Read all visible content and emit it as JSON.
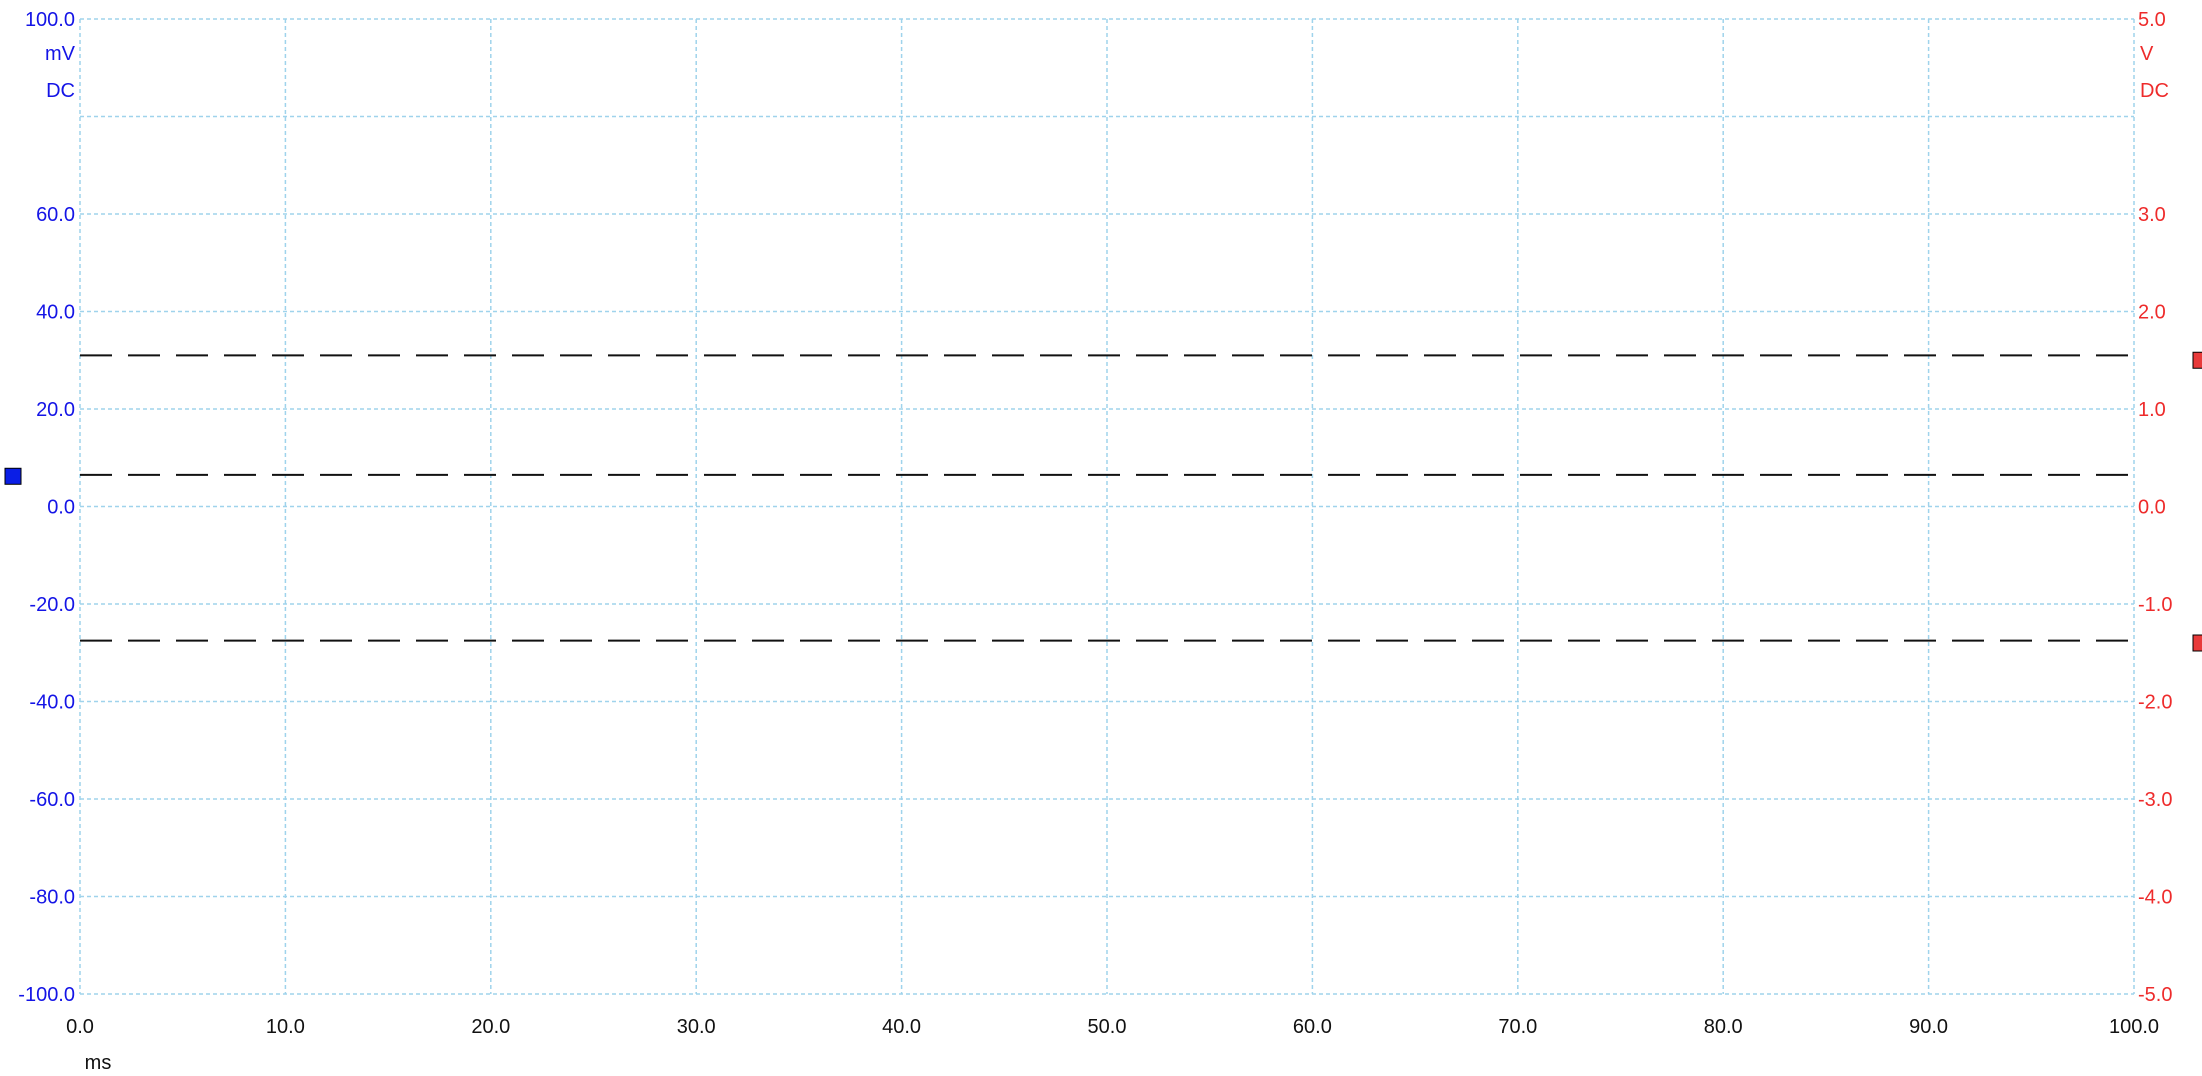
{
  "colors": {
    "left_axis": "#1414e6",
    "right_axis": "#ee2b2b",
    "x_axis": "#111111",
    "grid": "#9fd3ec",
    "threshold_line": "#111111",
    "marker_blue": "#0a1ee6",
    "marker_red": "#e83a3a"
  },
  "left_axis": {
    "unit": "mV",
    "coupling": "DC",
    "ticks": [
      "100.0",
      "60.0",
      "40.0",
      "20.0",
      "0.0",
      "-20.0",
      "-40.0",
      "-60.0",
      "-80.0",
      "-100.0"
    ]
  },
  "right_axis": {
    "unit": "V",
    "coupling": "DC",
    "ticks": [
      "5.0",
      "3.0",
      "2.0",
      "1.0",
      "0.0",
      "-1.0",
      "-2.0",
      "-3.0",
      "-4.0",
      "-5.0"
    ]
  },
  "x_axis": {
    "unit": "ms",
    "ticks": [
      "0.0",
      "10.0",
      "20.0",
      "30.0",
      "40.0",
      "50.0",
      "60.0",
      "70.0",
      "80.0",
      "90.0",
      "100.0"
    ]
  },
  "chart_data": {
    "type": "line",
    "title": "",
    "xlabel": "ms",
    "ylabel": "mV",
    "y2label": "V",
    "xlim": [
      0,
      100
    ],
    "ylim": [
      -100,
      100
    ],
    "y2lim": [
      -5,
      5
    ],
    "grid": true,
    "x_gridlines": [
      0,
      10,
      20,
      30,
      40,
      50,
      60,
      70,
      80,
      90,
      100
    ],
    "y_gridlines": [
      100,
      80,
      60,
      40,
      20,
      0,
      -20,
      -40,
      -60,
      -80,
      -100
    ],
    "y_tick_values": [
      100,
      60,
      40,
      20,
      0,
      -20,
      -40,
      -60,
      -80,
      -100
    ],
    "y2_tick_values": [
      5,
      3,
      2,
      1,
      0,
      -1,
      -2,
      -3,
      -4,
      -5
    ],
    "dashed_lines": [
      {
        "axis": "left",
        "value": 31
      },
      {
        "axis": "left",
        "value": 6.5
      },
      {
        "axis": "left",
        "value": -27.5
      }
    ],
    "channel_markers": [
      {
        "side": "left",
        "color": "blue",
        "value": 6.2
      },
      {
        "side": "right",
        "color": "red",
        "value": 1.5
      },
      {
        "side": "right",
        "color": "red",
        "value": -1.4
      }
    ]
  }
}
